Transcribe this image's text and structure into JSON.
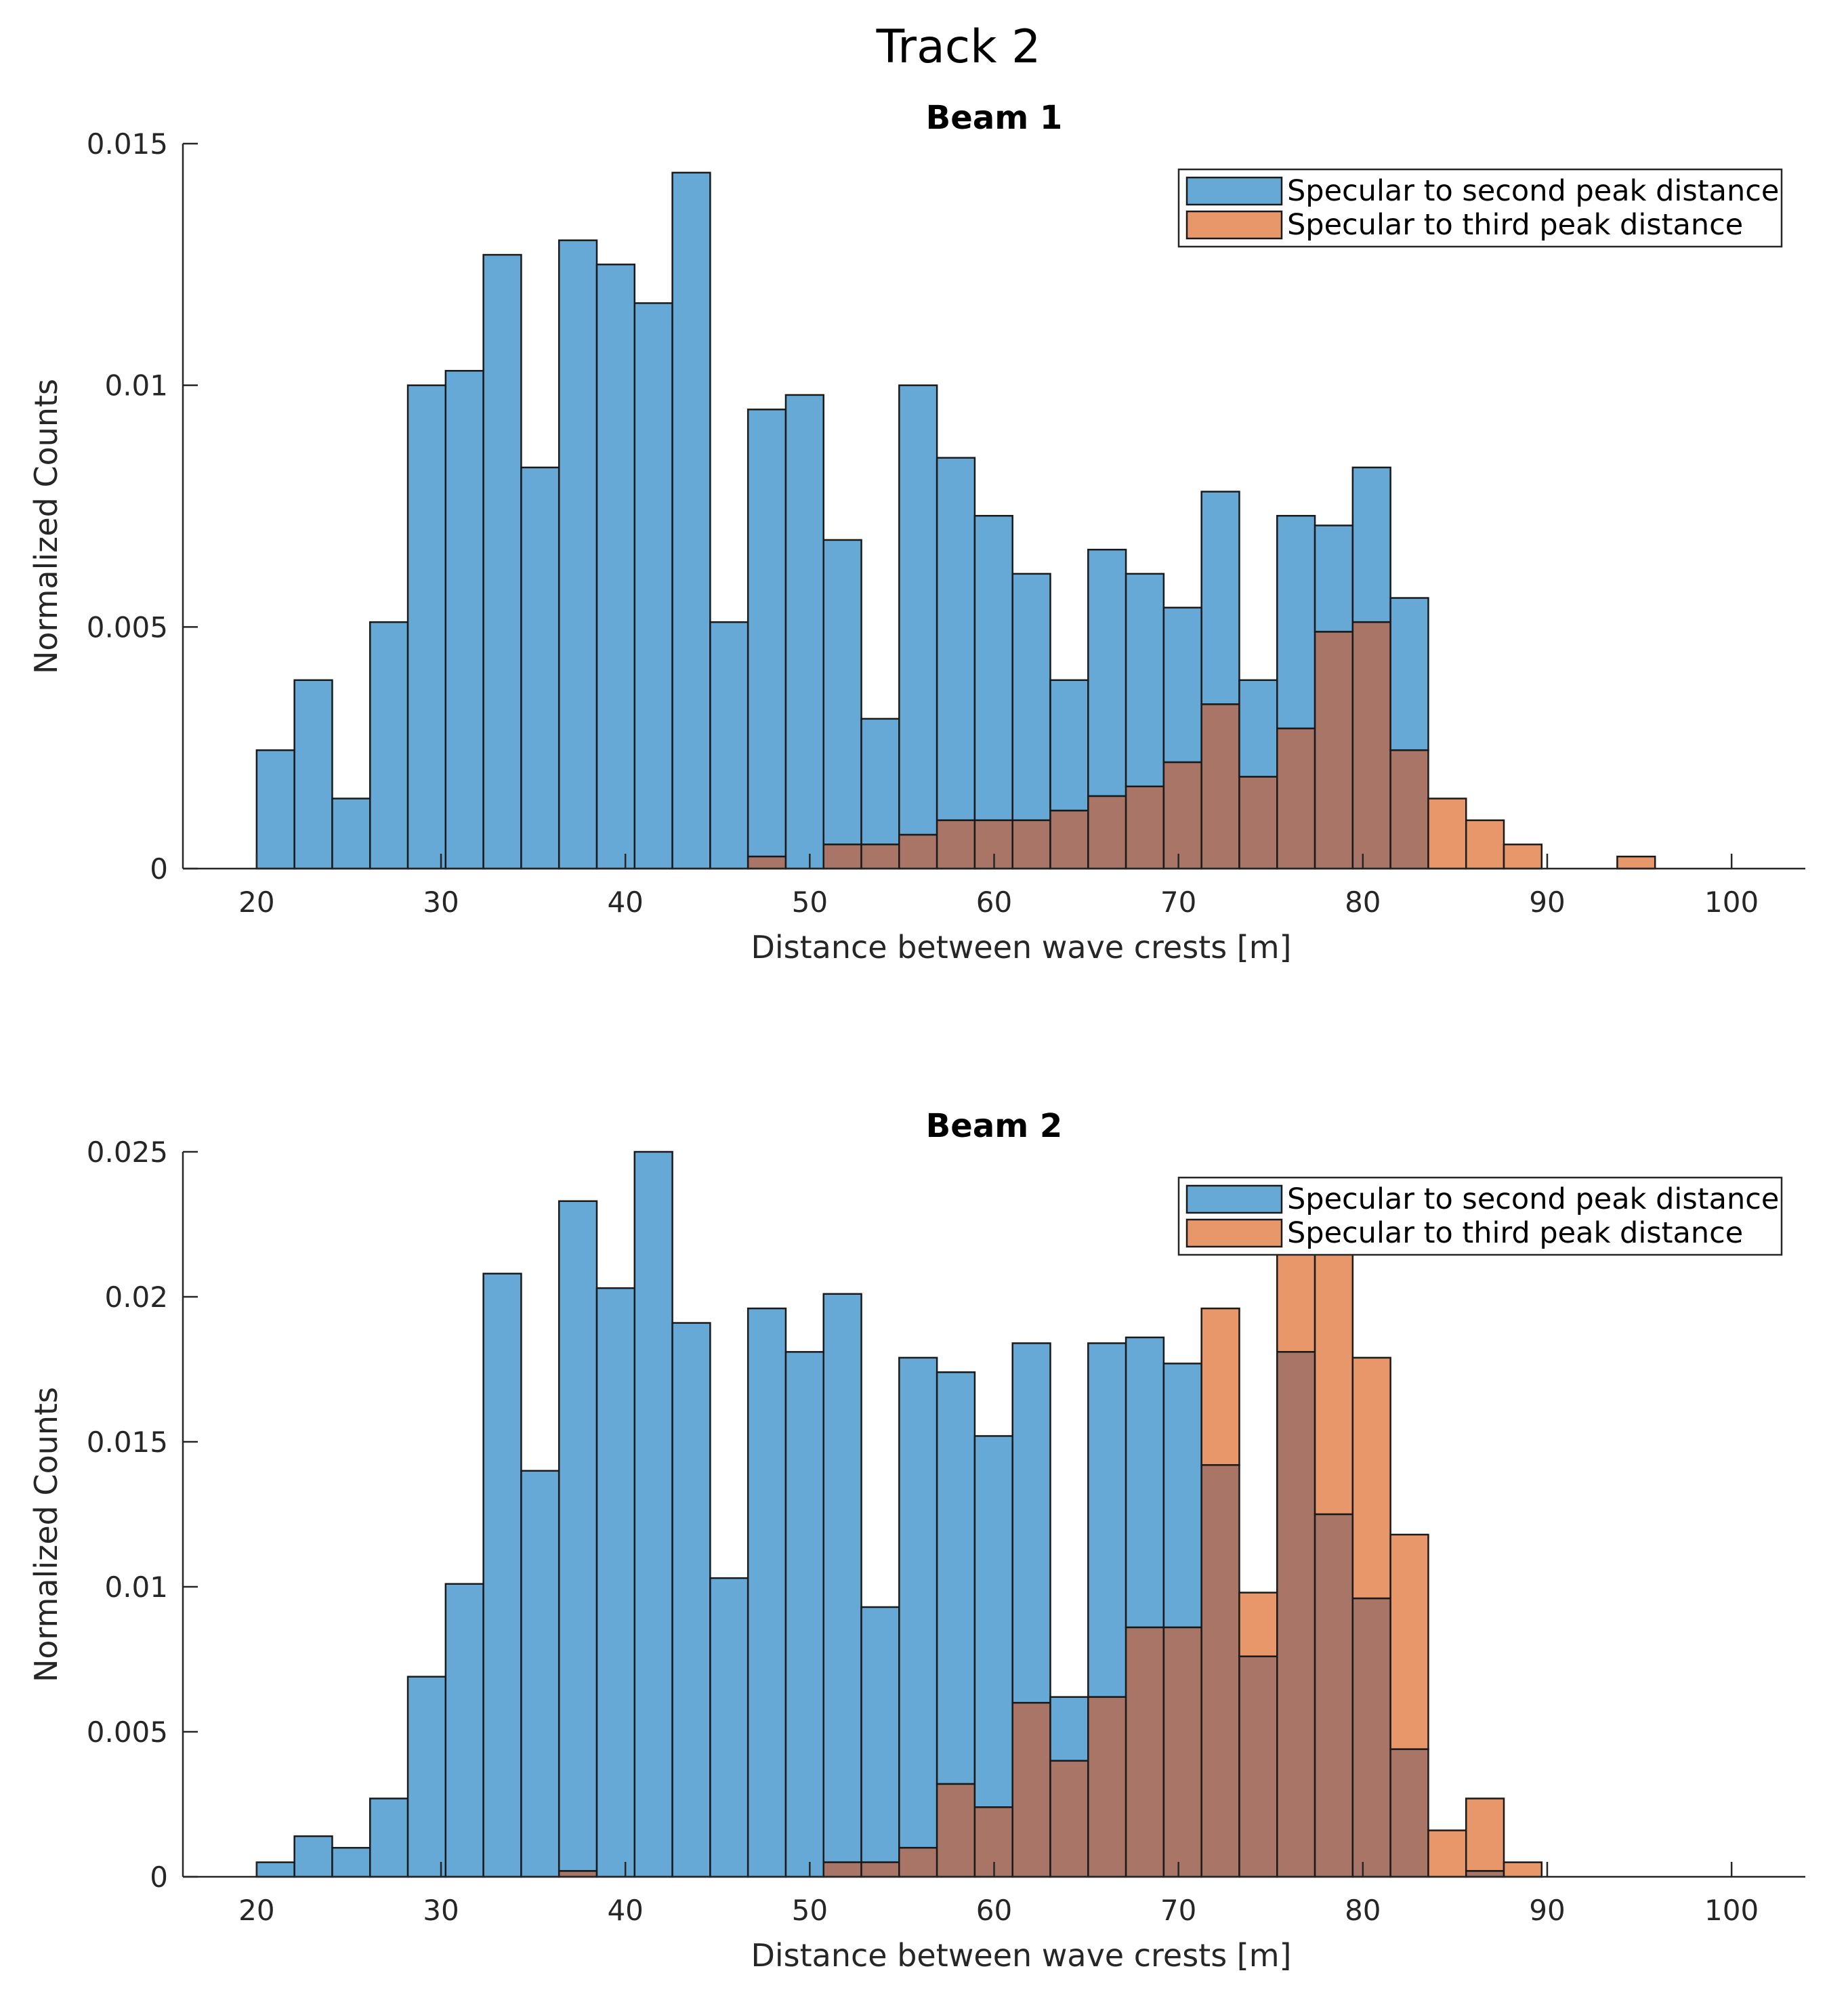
{
  "figure_title": "Track 2",
  "colors": {
    "series1": "#66a9d6",
    "series2": "#e8976b",
    "overlap": "#a87566",
    "edge": "#1a1a1a"
  },
  "chart_data": [
    {
      "type": "bar",
      "title": "Beam 1",
      "xlabel": "Distance between wave crests [m]",
      "ylabel": "Normalized Counts",
      "xlim": [
        16,
        104
      ],
      "ylim": [
        0,
        0.015
      ],
      "xticks": [
        20,
        30,
        40,
        50,
        60,
        70,
        80,
        90,
        100
      ],
      "xtick_labels": [
        "20",
        "30",
        "40",
        "50",
        "60",
        "70",
        "80",
        "90",
        "100"
      ],
      "yticks": [
        0,
        0.005,
        0.01,
        0.015
      ],
      "ytick_labels": [
        "0",
        "0.005",
        "0.01",
        "0.015"
      ],
      "bin_edges": [
        20,
        22.05,
        24.1,
        26.15,
        28.2,
        30.25,
        32.3,
        34.35,
        36.4,
        38.45,
        40.5,
        42.55,
        44.6,
        46.65,
        48.7,
        50.75,
        52.8,
        54.85,
        56.9,
        58.95,
        61,
        63.05,
        65.1,
        67.15,
        69.2,
        71.25,
        73.3,
        75.35,
        77.4,
        79.45,
        81.5,
        83.55,
        85.6,
        87.65,
        89.7,
        91.75,
        93.8,
        95.85,
        97.9,
        99.95
      ],
      "legend": [
        "Specular to second peak distance",
        "Specular to third peak distance"
      ],
      "legend_location": "top-right",
      "series": [
        {
          "name": "Specular to second peak distance",
          "values": [
            0.00245,
            0.0039,
            0.00145,
            0.0051,
            0.01,
            0.0103,
            0.0127,
            0.0083,
            0.013,
            0.0125,
            0.0117,
            0.0144,
            0.0051,
            0.0095,
            0.0098,
            0.0068,
            0.0031,
            0.01,
            0.0085,
            0.0073,
            0.0061,
            0.0039,
            0.0066,
            0.0061,
            0.0054,
            0.0078,
            0.0039,
            0.0073,
            0.0071,
            0.0083,
            0.0056,
            0,
            0,
            0,
            0,
            0,
            0,
            0,
            0
          ]
        },
        {
          "name": "Specular to third peak distance",
          "values": [
            0,
            0,
            0,
            0,
            0,
            0,
            0,
            0,
            0,
            0,
            0,
            0,
            0,
            0.00025,
            0,
            0.0005,
            0.0005,
            0.0007,
            0.001,
            0.001,
            0.001,
            0.0012,
            0.0015,
            0.0017,
            0.0022,
            0.0034,
            0.0019,
            0.0029,
            0.0049,
            0.0051,
            0.00245,
            0.00145,
            0.001,
            0.0005,
            0,
            0,
            0.00025,
            0,
            0
          ]
        }
      ]
    },
    {
      "type": "bar",
      "title": "Beam 2",
      "xlabel": "Distance between wave crests [m]",
      "ylabel": "Normalized Counts",
      "xlim": [
        16,
        104
      ],
      "ylim": [
        0,
        0.025
      ],
      "xticks": [
        20,
        30,
        40,
        50,
        60,
        70,
        80,
        90,
        100
      ],
      "xtick_labels": [
        "20",
        "30",
        "40",
        "50",
        "60",
        "70",
        "80",
        "90",
        "100"
      ],
      "yticks": [
        0,
        0.005,
        0.01,
        0.015,
        0.02,
        0.025
      ],
      "ytick_labels": [
        "0",
        "0.005",
        "0.01",
        "0.015",
        "0.02",
        "0.025"
      ],
      "bin_edges": [
        20,
        22.05,
        24.1,
        26.15,
        28.2,
        30.25,
        32.3,
        34.35,
        36.4,
        38.45,
        40.5,
        42.55,
        44.6,
        46.65,
        48.7,
        50.75,
        52.8,
        54.85,
        56.9,
        58.95,
        61,
        63.05,
        65.1,
        67.15,
        69.2,
        71.25,
        73.3,
        75.35,
        77.4,
        79.45,
        81.5,
        83.55,
        85.6,
        87.65,
        89.7,
        91.75,
        93.8,
        95.85,
        97.9,
        99.95
      ],
      "legend": [
        "Specular to second peak distance",
        "Specular to third peak distance"
      ],
      "legend_location": "top-right",
      "series": [
        {
          "name": "Specular to second peak distance",
          "values": [
            0.0005,
            0.0014,
            0.001,
            0.0027,
            0.0069,
            0.0101,
            0.0208,
            0.014,
            0.0233,
            0.0203,
            0.025,
            0.0191,
            0.0103,
            0.0196,
            0.0181,
            0.0201,
            0.0093,
            0.0179,
            0.0174,
            0.0152,
            0.0184,
            0.0062,
            0.0184,
            0.0186,
            0.0177,
            0.0142,
            0.0076,
            0.0181,
            0.0125,
            0.0096,
            0.0044,
            0,
            0.0002,
            0,
            0,
            0,
            0,
            0,
            0
          ]
        },
        {
          "name": "Specular to third peak distance",
          "values": [
            0,
            0,
            0,
            0,
            0,
            0,
            0,
            0,
            0.0002,
            0,
            0,
            0,
            0,
            0,
            0,
            0.0005,
            0.0005,
            0.001,
            0.0032,
            0.0024,
            0.006,
            0.004,
            0.0062,
            0.0086,
            0.0086,
            0.0196,
            0.0098,
            0.0223,
            0.0223,
            0.0179,
            0.0118,
            0.0016,
            0.0027,
            0.0005,
            0,
            0,
            0,
            0,
            0
          ]
        }
      ]
    }
  ]
}
